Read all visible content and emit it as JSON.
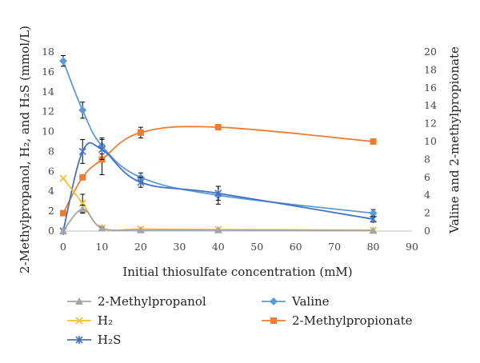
{
  "chart_data": {
    "type": "line",
    "xlabel": "Initial thiosulfate concentration (mM)",
    "ylabel_left": "2-Methylpropanol, H₂, and H₂S (mmol/L)",
    "ylabel_right": "Valine and 2-methylpropionate",
    "xlim": [
      0,
      90
    ],
    "ylim_left": [
      0,
      18
    ],
    "ylim_right": [
      0,
      20
    ],
    "x_ticks": [
      0,
      10,
      20,
      30,
      40,
      50,
      60,
      70,
      80,
      90
    ],
    "y_left_ticks": [
      0,
      2,
      4,
      6,
      8,
      10,
      12,
      14,
      16,
      18
    ],
    "y_right_ticks": [
      0,
      2,
      4,
      6,
      8,
      10,
      12,
      14,
      16,
      18,
      20
    ],
    "grid": false,
    "legend_position": "bottom",
    "series": [
      {
        "name": "2-Methylpropanol",
        "axis": "left",
        "marker": "triangle",
        "color": "#a5a5a5",
        "x": [
          0,
          5,
          10,
          20,
          40,
          80
        ],
        "y": [
          0,
          2.2,
          0.3,
          0.1,
          0.1,
          0.05
        ],
        "err": [
          0,
          0.4,
          0.1,
          0,
          0,
          0
        ]
      },
      {
        "name": "H₂",
        "axis": "left",
        "marker": "x",
        "color": "#f2c12e",
        "x": [
          0,
          5,
          10,
          20,
          40,
          80
        ],
        "y": [
          5.3,
          2.8,
          0.3,
          0.2,
          0.15,
          0.1
        ],
        "err": [
          0,
          0.9,
          0,
          0,
          0,
          0
        ]
      },
      {
        "name": "H₂S",
        "axis": "left",
        "marker": "star",
        "color": "#4472c4",
        "x": [
          0,
          5,
          10,
          20,
          40,
          80
        ],
        "y": [
          0,
          8.0,
          8.2,
          4.9,
          3.8,
          1.2
        ],
        "err": [
          0,
          1.2,
          1.0,
          0.5,
          0.7,
          0.3
        ]
      },
      {
        "name": "Valine",
        "axis": "right",
        "marker": "diamond",
        "color": "#5b9bd5",
        "x": [
          0,
          5,
          10,
          20,
          40,
          80
        ],
        "y": [
          19.0,
          13.5,
          9.5,
          6.0,
          4.0,
          2.0
        ],
        "err": [
          0.6,
          0.9,
          0.9,
          0.5,
          1.0,
          0.4
        ]
      },
      {
        "name": "2-Methylpropionate",
        "axis": "right",
        "marker": "square",
        "color": "#ed7d31",
        "x": [
          0,
          5,
          10,
          20,
          40,
          80
        ],
        "y": [
          2.0,
          6.0,
          8.0,
          11.0,
          11.6,
          10.0
        ],
        "err": [
          0,
          0,
          1.7,
          0.6,
          0,
          0
        ]
      }
    ]
  }
}
